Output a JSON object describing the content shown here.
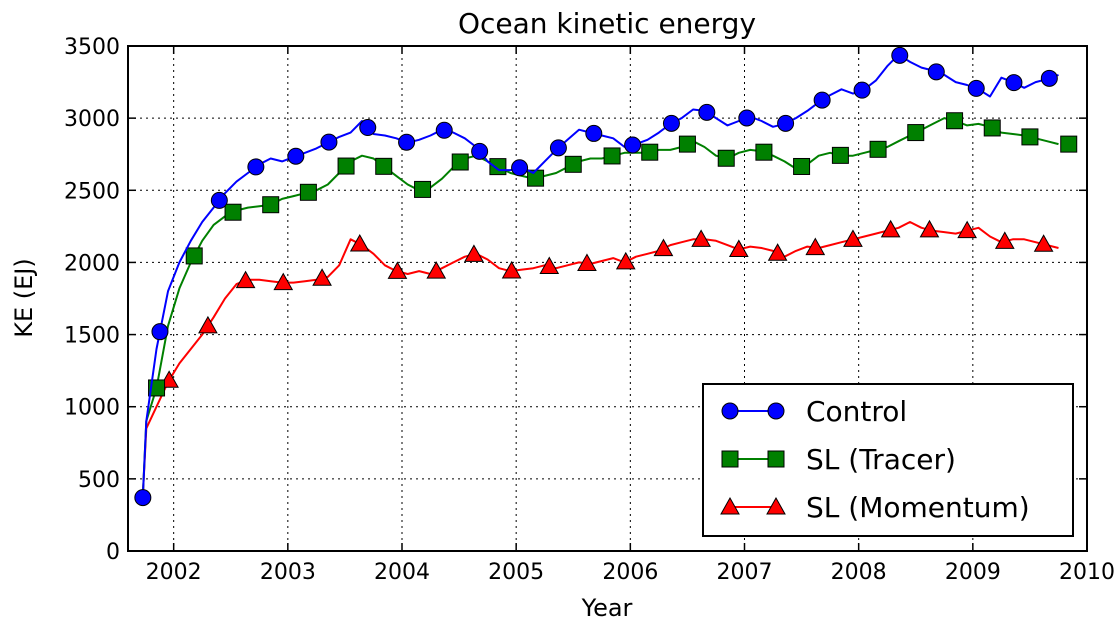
{
  "chart_data": {
    "type": "line",
    "title": "Ocean kinetic energy",
    "xlabel": "Year",
    "ylabel": "KE (EJ)",
    "xlim": [
      2001.6,
      2010.0
    ],
    "ylim": [
      0,
      3500
    ],
    "xticks": [
      2002,
      2003,
      2004,
      2005,
      2006,
      2007,
      2008,
      2009,
      2010
    ],
    "yticks": [
      0,
      500,
      1000,
      1500,
      2000,
      2500,
      3000,
      3500
    ],
    "grid": true,
    "legend_position": "lower-right",
    "series": [
      {
        "name": "Control",
        "color": "#0000ff",
        "marker": "circle",
        "x": [
          2001.73,
          2001.76,
          2001.85,
          2001.95,
          2002.05,
          2002.15,
          2002.25,
          2002.35,
          2002.45,
          2002.55,
          2002.65,
          2002.75,
          2002.85,
          2002.95,
          2003.05,
          2003.15,
          2003.25,
          2003.35,
          2003.45,
          2003.55,
          2003.65,
          2003.75,
          2003.85,
          2003.95,
          2004.05,
          2004.15,
          2004.25,
          2004.35,
          2004.45,
          2004.55,
          2004.65,
          2004.75,
          2004.85,
          2004.95,
          2005.05,
          2005.15,
          2005.25,
          2005.35,
          2005.45,
          2005.55,
          2005.65,
          2005.75,
          2005.85,
          2005.95,
          2006.05,
          2006.15,
          2006.25,
          2006.35,
          2006.45,
          2006.55,
          2006.65,
          2006.75,
          2006.85,
          2006.95,
          2007.05,
          2007.15,
          2007.25,
          2007.35,
          2007.45,
          2007.55,
          2007.65,
          2007.75,
          2007.85,
          2007.95,
          2008.05,
          2008.15,
          2008.25,
          2008.35,
          2008.45,
          2008.55,
          2008.65,
          2008.75,
          2008.85,
          2008.95,
          2009.05,
          2009.15,
          2009.25,
          2009.35,
          2009.45,
          2009.55,
          2009.65,
          2009.75
        ],
        "values": [
          370,
          900,
          1400,
          1800,
          2000,
          2150,
          2280,
          2380,
          2480,
          2560,
          2620,
          2680,
          2720,
          2700,
          2730,
          2760,
          2790,
          2830,
          2870,
          2900,
          2980,
          2890,
          2880,
          2860,
          2830,
          2850,
          2880,
          2920,
          2900,
          2860,
          2800,
          2700,
          2640,
          2640,
          2660,
          2620,
          2700,
          2780,
          2850,
          2920,
          2900,
          2880,
          2860,
          2800,
          2820,
          2850,
          2900,
          2960,
          3000,
          3060,
          3050,
          3000,
          2950,
          2980,
          3010,
          2980,
          2940,
          2960,
          3000,
          3050,
          3110,
          3160,
          3200,
          3170,
          3200,
          3260,
          3360,
          3440,
          3390,
          3350,
          3330,
          3300,
          3250,
          3230,
          3200,
          3150,
          3280,
          3250,
          3210,
          3250,
          3270,
          3300
        ],
        "markers_x": [
          2001.73,
          2001.88,
          2002.4,
          2002.72,
          2003.07,
          2003.36,
          2003.7,
          2004.04,
          2004.37,
          2004.68,
          2005.03,
          2005.37,
          2005.68,
          2006.02,
          2006.36,
          2006.67,
          2007.02,
          2007.36,
          2007.68,
          2008.03,
          2008.36,
          2008.68,
          2009.03,
          2009.36,
          2009.67
        ]
      },
      {
        "name": "SL (Tracer)",
        "color": "#008000",
        "marker": "square",
        "x": [
          2001.73,
          2001.76,
          2001.85,
          2001.95,
          2002.05,
          2002.15,
          2002.25,
          2002.35,
          2002.45,
          2002.55,
          2002.65,
          2002.75,
          2002.85,
          2002.95,
          2003.05,
          2003.15,
          2003.25,
          2003.35,
          2003.45,
          2003.55,
          2003.65,
          2003.75,
          2003.85,
          2003.95,
          2004.05,
          2004.15,
          2004.25,
          2004.35,
          2004.45,
          2004.55,
          2004.65,
          2004.75,
          2004.85,
          2004.95,
          2005.05,
          2005.15,
          2005.25,
          2005.35,
          2005.45,
          2005.55,
          2005.65,
          2005.75,
          2005.85,
          2005.95,
          2006.05,
          2006.15,
          2006.25,
          2006.35,
          2006.45,
          2006.55,
          2006.65,
          2006.75,
          2006.85,
          2006.95,
          2007.05,
          2007.15,
          2007.25,
          2007.35,
          2007.45,
          2007.55,
          2007.65,
          2007.75,
          2007.85,
          2007.95,
          2008.05,
          2008.15,
          2008.25,
          2008.35,
          2008.45,
          2008.55,
          2008.65,
          2008.75,
          2008.85,
          2008.95,
          2009.05,
          2009.15,
          2009.25,
          2009.35,
          2009.45,
          2009.55,
          2009.65,
          2009.75
        ],
        "values": [
          380,
          900,
          1130,
          1560,
          1820,
          2000,
          2150,
          2260,
          2320,
          2360,
          2380,
          2390,
          2400,
          2440,
          2460,
          2480,
          2500,
          2540,
          2620,
          2700,
          2740,
          2720,
          2660,
          2600,
          2540,
          2500,
          2520,
          2580,
          2660,
          2720,
          2740,
          2700,
          2660,
          2620,
          2600,
          2580,
          2600,
          2620,
          2660,
          2700,
          2720,
          2720,
          2740,
          2760,
          2760,
          2760,
          2780,
          2780,
          2800,
          2840,
          2800,
          2740,
          2720,
          2760,
          2780,
          2770,
          2740,
          2700,
          2650,
          2680,
          2740,
          2760,
          2740,
          2740,
          2760,
          2780,
          2800,
          2840,
          2880,
          2920,
          2960,
          3000,
          2980,
          2950,
          2960,
          2940,
          2900,
          2890,
          2880,
          2860,
          2840,
          2820
        ],
        "markers_x": [
          2001.85,
          2002.18,
          2002.52,
          2002.85,
          2003.18,
          2003.51,
          2003.84,
          2004.18,
          2004.51,
          2004.84,
          2005.17,
          2005.5,
          2005.84,
          2006.17,
          2006.5,
          2006.84,
          2007.17,
          2007.5,
          2007.84,
          2008.17,
          2008.5,
          2008.84,
          2009.17,
          2009.5,
          2009.84
        ]
      },
      {
        "name": "SL (Momentum)",
        "color": "#ff0000",
        "marker": "triangle",
        "x": [
          2001.73,
          2001.76,
          2001.85,
          2001.95,
          2002.05,
          2002.15,
          2002.25,
          2002.35,
          2002.45,
          2002.55,
          2002.65,
          2002.75,
          2002.85,
          2002.95,
          2003.05,
          2003.15,
          2003.25,
          2003.35,
          2003.45,
          2003.55,
          2003.65,
          2003.75,
          2003.85,
          2003.95,
          2004.05,
          2004.15,
          2004.25,
          2004.35,
          2004.45,
          2004.55,
          2004.65,
          2004.75,
          2004.85,
          2004.95,
          2005.05,
          2005.15,
          2005.25,
          2005.35,
          2005.45,
          2005.55,
          2005.65,
          2005.75,
          2005.85,
          2005.95,
          2006.05,
          2006.15,
          2006.25,
          2006.35,
          2006.45,
          2006.55,
          2006.65,
          2006.75,
          2006.85,
          2006.95,
          2007.05,
          2007.15,
          2007.25,
          2007.35,
          2007.45,
          2007.55,
          2007.65,
          2007.75,
          2007.85,
          2007.95,
          2008.05,
          2008.15,
          2008.25,
          2008.35,
          2008.45,
          2008.55,
          2008.65,
          2008.75,
          2008.85,
          2008.95,
          2009.05,
          2009.15,
          2009.25,
          2009.35,
          2009.45,
          2009.55,
          2009.65,
          2009.75
        ],
        "values": [
          380,
          850,
          1000,
          1170,
          1300,
          1400,
          1500,
          1620,
          1750,
          1850,
          1880,
          1880,
          1870,
          1860,
          1860,
          1870,
          1880,
          1900,
          1980,
          2160,
          2120,
          2060,
          1980,
          1940,
          1920,
          1940,
          1920,
          1960,
          2000,
          2040,
          2060,
          2020,
          1960,
          1940,
          1950,
          1960,
          1980,
          1960,
          1980,
          2000,
          1990,
          2010,
          2030,
          2000,
          2040,
          2060,
          2080,
          2120,
          2140,
          2160,
          2160,
          2150,
          2120,
          2090,
          2110,
          2100,
          2080,
          2040,
          2080,
          2110,
          2100,
          2120,
          2140,
          2160,
          2180,
          2200,
          2220,
          2240,
          2280,
          2240,
          2220,
          2210,
          2200,
          2220,
          2240,
          2180,
          2140,
          2160,
          2160,
          2140,
          2120,
          2100
        ],
        "markers_x": [
          2001.96,
          2002.3,
          2002.63,
          2002.96,
          2003.3,
          2003.63,
          2003.96,
          2004.3,
          2004.63,
          2004.96,
          2005.29,
          2005.62,
          2005.96,
          2006.29,
          2006.62,
          2006.95,
          2007.29,
          2007.62,
          2007.95,
          2008.28,
          2008.62,
          2008.95,
          2009.28,
          2009.62
        ]
      }
    ]
  }
}
